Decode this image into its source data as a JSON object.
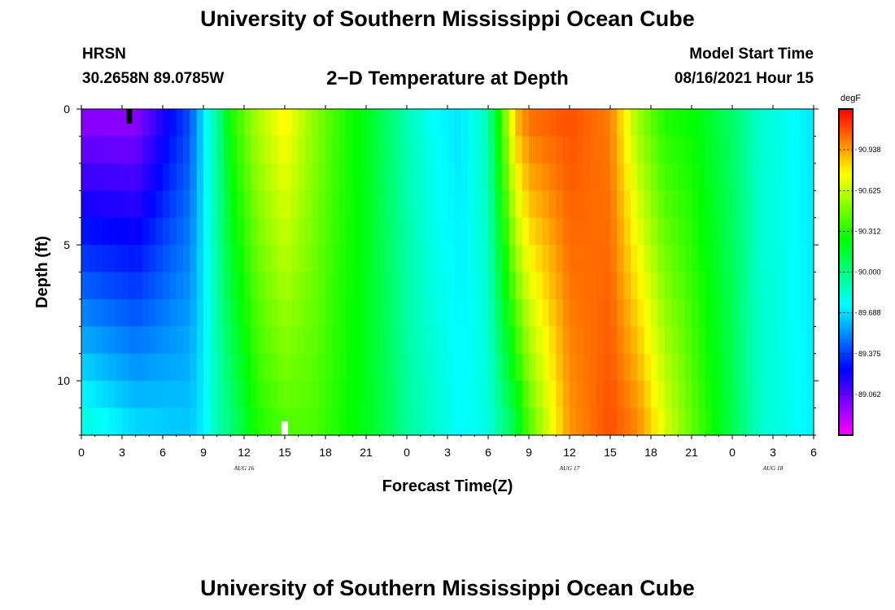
{
  "header": {
    "title": "University of Southern Mississippi Ocean Cube",
    "station": "HRSN",
    "coordinates": "30.2658N  89.0785W",
    "subtitle": "2−D Temperature at Depth",
    "model_start_label": "Model Start Time",
    "model_start_value": "08/16/2021 Hour 15"
  },
  "footer": {
    "title": "University of Southern Mississippi Ocean Cube"
  },
  "chart_data": {
    "type": "heatmap",
    "xlabel": "Forecast Time(Z)",
    "ylabel": "Depth (ft)",
    "x_tick_labels": [
      "0",
      "3",
      "6",
      "9",
      "12",
      "15",
      "18",
      "21",
      "0",
      "3",
      "6",
      "9",
      "12",
      "15",
      "18",
      "21",
      "0",
      "3",
      "6"
    ],
    "x_day_labels": [
      {
        "label": "AUG 16",
        "hour": 12
      },
      {
        "label": "AUG 17",
        "hour": 36
      },
      {
        "label": "AUG 18",
        "hour": 51
      }
    ],
    "x_range_hours": [
      0,
      54
    ],
    "y_tick_labels": [
      "0",
      "5",
      "10"
    ],
    "y_ticks": [
      0,
      5,
      10
    ],
    "y_range": [
      0,
      12
    ],
    "colorbar": {
      "unit": "degF",
      "ticks": [
        "90.938",
        "90.625",
        "90.312",
        "90.000",
        "89.688",
        "89.375",
        "89.062"
      ],
      "tick_values": [
        90.938,
        90.625,
        90.312,
        90.0,
        89.688,
        89.375,
        89.062
      ],
      "range": [
        88.75,
        91.25
      ]
    },
    "markers": [
      {
        "kind": "black-bar",
        "hour": 3.5,
        "depth": 0
      },
      {
        "kind": "white-bar",
        "hour": 15,
        "depth": 12
      }
    ],
    "depth_levels_ft": [
      0.5,
      1.5,
      2.5,
      3.5,
      4.5,
      5.5,
      6.5,
      7.5,
      8.5,
      9.5,
      10.5,
      11.5
    ],
    "temperature_profile": [
      {
        "hour": 0,
        "surface": 88.95,
        "bottom": 89.85
      },
      {
        "hour": 4,
        "surface": 88.95,
        "bottom": 89.7
      },
      {
        "hour": 8,
        "surface": 89.4,
        "bottom": 89.65
      },
      {
        "hour": 9,
        "surface": 89.7,
        "bottom": 89.72
      },
      {
        "hour": 10,
        "surface": 89.95,
        "bottom": 89.9
      },
      {
        "hour": 11,
        "surface": 90.3,
        "bottom": 90.0
      },
      {
        "hour": 13,
        "surface": 90.6,
        "bottom": 90.3
      },
      {
        "hour": 15,
        "surface": 90.78,
        "bottom": 90.4
      },
      {
        "hour": 17,
        "surface": 90.55,
        "bottom": 90.4
      },
      {
        "hour": 19,
        "surface": 90.35,
        "bottom": 90.3
      },
      {
        "hour": 21,
        "surface": 90.2,
        "bottom": 90.2
      },
      {
        "hour": 23,
        "surface": 90.0,
        "bottom": 90.05
      },
      {
        "hour": 24,
        "surface": 89.9,
        "bottom": 89.95
      },
      {
        "hour": 26,
        "surface": 89.75,
        "bottom": 89.85
      },
      {
        "hour": 28,
        "surface": 89.7,
        "bottom": 89.75
      },
      {
        "hour": 30,
        "surface": 89.9,
        "bottom": 89.8
      },
      {
        "hour": 31,
        "surface": 90.4,
        "bottom": 89.95
      },
      {
        "hour": 32,
        "surface": 90.9,
        "bottom": 90.1
      },
      {
        "hour": 33,
        "surface": 91.05,
        "bottom": 90.4
      },
      {
        "hour": 36,
        "surface": 91.1,
        "bottom": 90.95
      },
      {
        "hour": 39,
        "surface": 91.0,
        "bottom": 91.1
      },
      {
        "hour": 41,
        "surface": 90.55,
        "bottom": 91.0
      },
      {
        "hour": 43,
        "surface": 90.3,
        "bottom": 90.7
      },
      {
        "hour": 45,
        "surface": 90.25,
        "bottom": 90.45
      },
      {
        "hour": 48,
        "surface": 90.05,
        "bottom": 90.1
      },
      {
        "hour": 50,
        "surface": 89.85,
        "bottom": 89.85
      },
      {
        "hour": 54,
        "surface": 89.7,
        "bottom": 89.72
      }
    ]
  }
}
